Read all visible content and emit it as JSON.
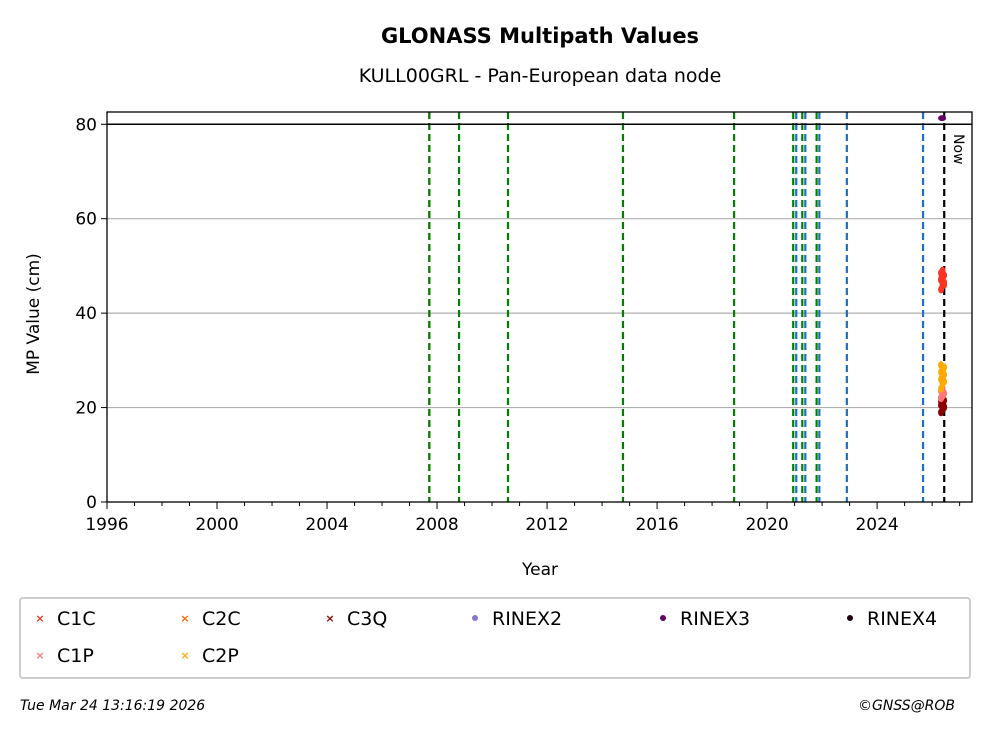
{
  "chart_data": {
    "type": "scatter",
    "title": "GLONASS Multipath Values",
    "subtitle": "KULL00GRL - Pan-European data node",
    "xlabel": "Year",
    "ylabel": "MP Value (cm)",
    "xlim": [
      1996,
      2027.45
    ],
    "ylim": [
      0,
      82.6
    ],
    "xticks": [
      "1996",
      "2000",
      "2004",
      "2008",
      "2012",
      "2016",
      "2020",
      "2024"
    ],
    "yticks": [
      "0",
      "20",
      "40",
      "60",
      "80"
    ],
    "grid": "y",
    "threshold_line": 80,
    "now_label": "Now",
    "now_x": 2026.44,
    "vlines": [
      {
        "x": 2007.72,
        "color": "#d62728"
      },
      {
        "x": 2007.72,
        "color": "#008000"
      },
      {
        "x": 2008.8,
        "color": "#008000"
      },
      {
        "x": 2010.58,
        "color": "#008000"
      },
      {
        "x": 2014.76,
        "color": "#008000"
      },
      {
        "x": 2018.8,
        "color": "#008000"
      },
      {
        "x": 2020.95,
        "color": "#008000"
      },
      {
        "x": 2021.06,
        "color": "#1f6fc1"
      },
      {
        "x": 2021.28,
        "color": "#008000"
      },
      {
        "x": 2021.39,
        "color": "#1f6fc1"
      },
      {
        "x": 2021.8,
        "color": "#008000"
      },
      {
        "x": 2021.9,
        "color": "#1f6fc1"
      },
      {
        "x": 2022.9,
        "color": "#1f6fc1"
      },
      {
        "x": 2025.67,
        "color": "#1f6fc1"
      },
      {
        "x": 2026.44,
        "color": "#000000"
      }
    ],
    "series": [
      {
        "name": "C1C",
        "color": "#ff3322",
        "marker": "x",
        "x": 2026.38,
        "y": [
          45,
          46,
          46.5,
          47,
          47.5,
          48,
          48.5,
          49,
          46,
          47.2
        ]
      },
      {
        "name": "C2C",
        "color": "#ff6600",
        "marker": "x",
        "x": 2026.38,
        "y": []
      },
      {
        "name": "C3Q",
        "color": "#8b0000",
        "marker": "x",
        "x": 2026.38,
        "y": [
          19,
          19.5,
          20,
          20.5,
          21,
          21.5,
          22,
          22.5,
          20.2,
          21.2
        ]
      },
      {
        "name": "RINEX2",
        "color": "#8877cc",
        "marker": "o",
        "x": 2026.38,
        "y": []
      },
      {
        "name": "RINEX3",
        "color": "#660066",
        "marker": "o",
        "x": 2026.38,
        "y": [
          81.3
        ]
      },
      {
        "name": "RINEX4",
        "color": "#220011",
        "marker": "o",
        "x": 2026.38,
        "y": []
      },
      {
        "name": "C1P",
        "color": "#ff7777",
        "marker": "x",
        "x": 2026.38,
        "y": [
          22,
          22.5,
          23,
          23.5,
          24
        ]
      },
      {
        "name": "C2P",
        "color": "#ffaa00",
        "marker": "x",
        "x": 2026.38,
        "y": [
          24,
          25,
          25.5,
          26,
          26.5,
          27,
          27.5,
          28,
          28.5,
          29
        ]
      }
    ]
  },
  "footer": {
    "timestamp": "Tue Mar 24 13:16:19 2026",
    "credit": "©GNSS@ROB"
  }
}
